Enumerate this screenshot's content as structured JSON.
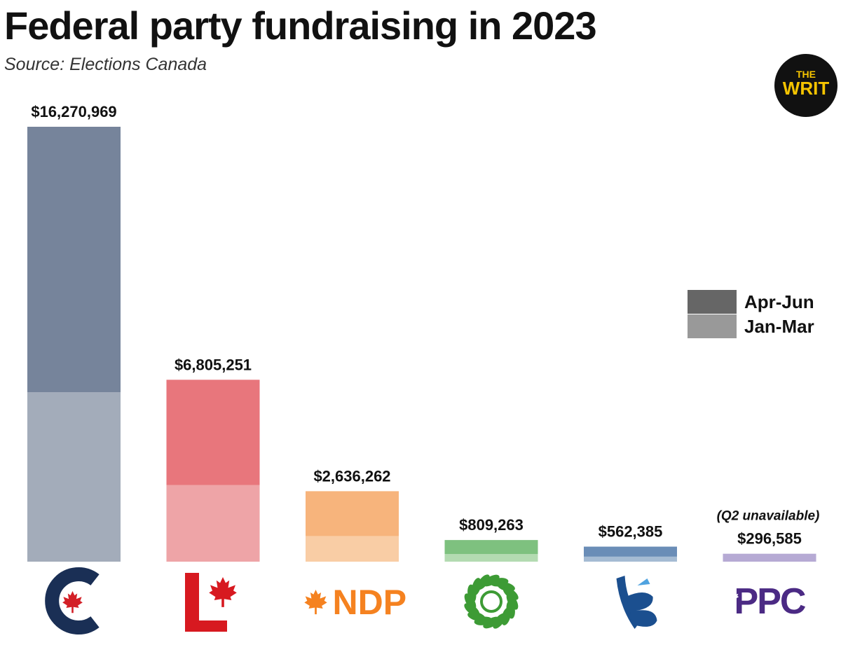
{
  "title": "Federal party fundraising in 2023",
  "source": "Source: Elections Canada",
  "brand": {
    "line1": "THE",
    "line2": "WRIT",
    "bg": "#111111",
    "fg": "#f5c400"
  },
  "legend": {
    "items": [
      {
        "label": "Apr-Jun",
        "color": "#666666"
      },
      {
        "label": "Jan-Mar",
        "color": "#999999"
      }
    ]
  },
  "chart_data": {
    "type": "bar",
    "stacked": true,
    "title": "Federal party fundraising in 2023",
    "ylim": [
      0,
      16270969
    ],
    "categories": [
      "Conservative",
      "Liberal",
      "NDP",
      "Green",
      "Bloc Québécois",
      "PPC"
    ],
    "series": [
      {
        "name": "Jan-Mar",
        "values": [
          6337000,
          2868000,
          958000,
          283000,
          187000,
          296585
        ]
      },
      {
        "name": "Apr-Jun",
        "values": [
          9933969,
          3937251,
          1678262,
          526263,
          375385,
          0
        ]
      }
    ],
    "totals": [
      "$16,270,969",
      "$6,805,251",
      "$2,636,262",
      "$809,263",
      "$562,385",
      "$296,585"
    ],
    "notes": [
      "",
      "",
      "",
      "",
      "",
      "(Q2 unavailable)"
    ],
    "colors": {
      "Conservative": {
        "dark": "#76849b",
        "light": "#a3acba"
      },
      "Liberal": {
        "dark": "#e8767c",
        "light": "#eea4a7"
      },
      "NDP": {
        "dark": "#f7b47c",
        "light": "#f9cda5"
      },
      "Green": {
        "dark": "#7ec17f",
        "light": "#b3dbb1"
      },
      "Bloc Québécois": {
        "dark": "#6a8db7",
        "light": "#a5bbd3"
      },
      "PPC": {
        "dark": "#b6aad4",
        "light": "#b6aad4"
      }
    },
    "logos": [
      "conservative-logo",
      "liberal-logo",
      "NDP",
      "green-logo",
      "bloc-logo",
      "PPC"
    ],
    "logo_colors": {
      "conservative": "#1a2f55",
      "conservative_leaf": "#d32027",
      "liberal": "#d71920",
      "ndp": "#f58220",
      "green": "#3d9b35",
      "bloc": "#1b4f8f",
      "ppc": "#4b2a84"
    }
  }
}
